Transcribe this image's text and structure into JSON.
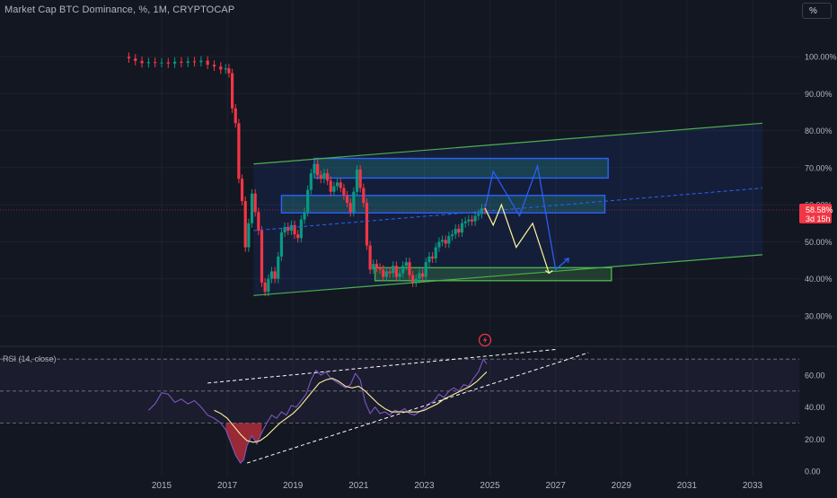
{
  "header": {
    "title": "Market Cap BTC Dominance, %, 1M, CRYPTOCAP",
    "unit_button": "%"
  },
  "price_badge": {
    "value": "58.58%",
    "countdown": "3d 15h",
    "color": "#f23645"
  },
  "rsi_panel": {
    "label": "RSI (14, close)",
    "upper_band": 70,
    "lower_band": 30,
    "mid_line": 50
  },
  "colors": {
    "background": "#131722",
    "up_candle": "#089981",
    "down_candle": "#f23645",
    "channel": "#4caf50",
    "zone_blue": "#2962ff",
    "path_blue": "#2962ff",
    "path_yellow": "#fff59d",
    "rsi_line": "#7e57c2",
    "rsi_ma": "#fff59d"
  },
  "icons": {
    "event": "lightning-icon"
  },
  "chart_data": [
    {
      "type": "candlestick",
      "title": "Market Cap BTC Dominance, %, 1M, CRYPTOCAP",
      "ylim": [
        25,
        110
      ],
      "xlim": [
        2013.0,
        2034.0
      ],
      "y_ticks": [
        "100.00%",
        "90.00%",
        "80.00%",
        "70.00%",
        "60.00%",
        "50.00%",
        "40.00%",
        "30.00%"
      ],
      "y_tick_values": [
        100,
        90,
        80,
        70,
        60,
        50,
        40,
        30
      ],
      "x_ticks": [
        "2015",
        "2017",
        "2019",
        "2021",
        "2023",
        "2025",
        "2027",
        "2029",
        "2031",
        "2033"
      ],
      "x_tick_values": [
        2015,
        2017,
        2019,
        2021,
        2023,
        2025,
        2027,
        2029,
        2031,
        2033
      ],
      "last_value": 58.58,
      "series_close": [
        [
          2014.0,
          99.5
        ],
        [
          2014.2,
          98.8
        ],
        [
          2014.4,
          98.2
        ],
        [
          2014.6,
          98.5
        ],
        [
          2014.8,
          98.3
        ],
        [
          2015.0,
          98.4
        ],
        [
          2015.2,
          98.1
        ],
        [
          2015.4,
          98.6
        ],
        [
          2015.6,
          98.3
        ],
        [
          2015.8,
          98.7
        ],
        [
          2016.0,
          98.5
        ],
        [
          2016.2,
          98.9
        ],
        [
          2016.4,
          97.8
        ],
        [
          2016.6,
          97.3
        ],
        [
          2016.8,
          96.5
        ],
        [
          2016.95,
          96.8
        ],
        [
          2017.05,
          95.5
        ],
        [
          2017.15,
          86.0
        ],
        [
          2017.25,
          82.0
        ],
        [
          2017.35,
          67.0
        ],
        [
          2017.45,
          61.0
        ],
        [
          2017.55,
          48.5
        ],
        [
          2017.65,
          55.0
        ],
        [
          2017.75,
          63.0
        ],
        [
          2017.85,
          58.0
        ],
        [
          2017.95,
          53.0
        ],
        [
          2018.05,
          39.0
        ],
        [
          2018.15,
          36.5
        ],
        [
          2018.25,
          40.0
        ],
        [
          2018.35,
          42.0
        ],
        [
          2018.45,
          40.0
        ],
        [
          2018.55,
          46.0
        ],
        [
          2018.65,
          52.5
        ],
        [
          2018.75,
          54.0
        ],
        [
          2018.85,
          53.0
        ],
        [
          2018.95,
          54.5
        ],
        [
          2019.05,
          52.0
        ],
        [
          2019.15,
          51.0
        ],
        [
          2019.25,
          56.0
        ],
        [
          2019.35,
          58.0
        ],
        [
          2019.45,
          64.0
        ],
        [
          2019.55,
          68.5
        ],
        [
          2019.65,
          71.0
        ],
        [
          2019.75,
          68.0
        ],
        [
          2019.85,
          67.0
        ],
        [
          2019.95,
          68.5
        ],
        [
          2020.05,
          66.5
        ],
        [
          2020.15,
          63.5
        ],
        [
          2020.25,
          65.0
        ],
        [
          2020.35,
          66.0
        ],
        [
          2020.45,
          64.5
        ],
        [
          2020.55,
          62.5
        ],
        [
          2020.65,
          60.5
        ],
        [
          2020.75,
          58.0
        ],
        [
          2020.85,
          63.5
        ],
        [
          2020.95,
          69.5
        ],
        [
          2021.05,
          64.5
        ],
        [
          2021.15,
          60.5
        ],
        [
          2021.25,
          49.0
        ],
        [
          2021.35,
          42.5
        ],
        [
          2021.45,
          44.0
        ],
        [
          2021.55,
          43.0
        ],
        [
          2021.65,
          42.5
        ],
        [
          2021.75,
          40.5
        ],
        [
          2021.85,
          42.0
        ],
        [
          2021.95,
          41.5
        ],
        [
          2022.05,
          43.5
        ],
        [
          2022.15,
          40.5
        ],
        [
          2022.25,
          41.5
        ],
        [
          2022.35,
          43.5
        ],
        [
          2022.45,
          44.5
        ],
        [
          2022.55,
          41.0
        ],
        [
          2022.65,
          39.0
        ],
        [
          2022.75,
          40.0
        ],
        [
          2022.85,
          41.5
        ],
        [
          2022.95,
          40.5
        ],
        [
          2023.05,
          44.5
        ],
        [
          2023.15,
          46.0
        ],
        [
          2023.25,
          45.5
        ],
        [
          2023.35,
          48.5
        ],
        [
          2023.45,
          50.0
        ],
        [
          2023.55,
          50.5
        ],
        [
          2023.65,
          49.5
        ],
        [
          2023.75,
          51.5
        ],
        [
          2023.85,
          52.0
        ],
        [
          2023.95,
          53.5
        ],
        [
          2024.05,
          52.5
        ],
        [
          2024.15,
          55.0
        ],
        [
          2024.25,
          55.5
        ],
        [
          2024.35,
          56.0
        ],
        [
          2024.45,
          55.5
        ],
        [
          2024.55,
          57.0
        ],
        [
          2024.65,
          57.5
        ],
        [
          2024.75,
          59.0
        ],
        [
          2024.85,
          58.58
        ]
      ],
      "annotations": {
        "channel_upper": [
          [
            2017.8,
            71.0
          ],
          [
            2033.3,
            82.0
          ]
        ],
        "channel_lower": [
          [
            2017.8,
            35.5
          ],
          [
            2033.3,
            46.5
          ]
        ],
        "channel_mid_dashed": [
          [
            2017.8,
            53.0
          ],
          [
            2033.3,
            64.5
          ]
        ],
        "zone_blue_upper": {
          "x": [
            2019.65,
            2028.6
          ],
          "y": [
            67.2,
            72.5
          ]
        },
        "zone_blue_lower": {
          "x": [
            2018.65,
            2028.5
          ],
          "y": [
            57.8,
            62.5
          ]
        },
        "zone_green": {
          "x": [
            2021.5,
            2028.7
          ],
          "y": [
            39.5,
            43.0
          ]
        },
        "path_blue": [
          [
            2024.85,
            59.0
          ],
          [
            2025.1,
            69.0
          ],
          [
            2025.9,
            57.0
          ],
          [
            2026.45,
            70.5
          ],
          [
            2027.0,
            42.5
          ],
          [
            2027.4,
            45.5
          ]
        ],
        "path_yellow": [
          [
            2024.85,
            59.0
          ],
          [
            2025.1,
            54.5
          ],
          [
            2025.35,
            60.0
          ],
          [
            2025.8,
            48.5
          ],
          [
            2026.3,
            55.0
          ],
          [
            2026.8,
            41.5
          ]
        ]
      }
    },
    {
      "type": "line",
      "title": "RSI (14, close)",
      "ylim": [
        -5,
        80
      ],
      "y_ticks": [
        "60.00",
        "40.00",
        "20.00",
        "0.00"
      ],
      "y_tick_values": [
        60,
        40,
        20,
        0
      ],
      "bands": [
        30,
        50,
        70
      ],
      "series": [
        {
          "name": "RSI",
          "values": [
            [
              2014.6,
              38
            ],
            [
              2014.8,
              42
            ],
            [
              2015.0,
              49
            ],
            [
              2015.2,
              48
            ],
            [
              2015.4,
              43
            ],
            [
              2015.6,
              45
            ],
            [
              2015.8,
              42
            ],
            [
              2016.0,
              44
            ],
            [
              2016.2,
              40
            ],
            [
              2016.4,
              35
            ],
            [
              2016.6,
              33
            ],
            [
              2016.8,
              30
            ],
            [
              2016.95,
              26
            ],
            [
              2017.1,
              18
            ],
            [
              2017.25,
              10
            ],
            [
              2017.4,
              5
            ],
            [
              2017.5,
              7
            ],
            [
              2017.6,
              16
            ],
            [
              2017.75,
              22
            ],
            [
              2017.9,
              17
            ],
            [
              2018.05,
              24
            ],
            [
              2018.2,
              30
            ],
            [
              2018.35,
              35
            ],
            [
              2018.5,
              33
            ],
            [
              2018.65,
              37
            ],
            [
              2018.8,
              35
            ],
            [
              2018.95,
              41
            ],
            [
              2019.1,
              40
            ],
            [
              2019.25,
              44
            ],
            [
              2019.4,
              48
            ],
            [
              2019.55,
              57
            ],
            [
              2019.7,
              63
            ],
            [
              2019.85,
              60
            ],
            [
              2020.0,
              62
            ],
            [
              2020.15,
              58
            ],
            [
              2020.3,
              56
            ],
            [
              2020.45,
              54
            ],
            [
              2020.6,
              52
            ],
            [
              2020.75,
              54
            ],
            [
              2020.9,
              61
            ],
            [
              2021.05,
              57
            ],
            [
              2021.2,
              43
            ],
            [
              2021.35,
              36
            ],
            [
              2021.5,
              40
            ],
            [
              2021.65,
              36
            ],
            [
              2021.8,
              37
            ],
            [
              2021.95,
              35
            ],
            [
              2022.1,
              38
            ],
            [
              2022.25,
              37
            ],
            [
              2022.4,
              39
            ],
            [
              2022.55,
              36
            ],
            [
              2022.7,
              35
            ],
            [
              2022.85,
              37
            ],
            [
              2023.0,
              39
            ],
            [
              2023.15,
              42
            ],
            [
              2023.3,
              44
            ],
            [
              2023.45,
              48
            ],
            [
              2023.6,
              46
            ],
            [
              2023.75,
              50
            ],
            [
              2023.9,
              52
            ],
            [
              2024.05,
              50
            ],
            [
              2024.2,
              54
            ],
            [
              2024.35,
              53
            ],
            [
              2024.5,
              58
            ],
            [
              2024.65,
              62
            ],
            [
              2024.8,
              70
            ],
            [
              2024.9,
              67
            ]
          ]
        },
        {
          "name": "RSI MA",
          "values": [
            [
              2016.6,
              38
            ],
            [
              2016.8,
              36
            ],
            [
              2017.0,
              33
            ],
            [
              2017.2,
              28
            ],
            [
              2017.4,
              23
            ],
            [
              2017.6,
              19
            ],
            [
              2017.8,
              18
            ],
            [
              2018.0,
              19
            ],
            [
              2018.2,
              22
            ],
            [
              2018.4,
              26
            ],
            [
              2018.6,
              30
            ],
            [
              2018.8,
              33
            ],
            [
              2019.0,
              36
            ],
            [
              2019.2,
              40
            ],
            [
              2019.4,
              45
            ],
            [
              2019.6,
              50
            ],
            [
              2019.8,
              55
            ],
            [
              2020.0,
              57
            ],
            [
              2020.2,
              58
            ],
            [
              2020.4,
              56
            ],
            [
              2020.6,
              53
            ],
            [
              2020.8,
              52
            ],
            [
              2021.0,
              53
            ],
            [
              2021.2,
              50
            ],
            [
              2021.4,
              46
            ],
            [
              2021.6,
              42
            ],
            [
              2021.8,
              39
            ],
            [
              2022.0,
              37
            ],
            [
              2022.2,
              37
            ],
            [
              2022.4,
              37
            ],
            [
              2022.6,
              37
            ],
            [
              2022.8,
              37
            ],
            [
              2023.0,
              38
            ],
            [
              2023.2,
              40
            ],
            [
              2023.4,
              42
            ],
            [
              2023.6,
              45
            ],
            [
              2023.8,
              47
            ],
            [
              2024.0,
              49
            ],
            [
              2024.2,
              51
            ],
            [
              2024.4,
              53
            ],
            [
              2024.6,
              56
            ],
            [
              2024.8,
              60
            ],
            [
              2024.9,
              62
            ]
          ]
        }
      ],
      "trendlines": {
        "upper_dashed": [
          [
            2016.4,
            55
          ],
          [
            2027.0,
            76
          ]
        ],
        "lower_dashed": [
          [
            2017.6,
            5
          ],
          [
            2028.0,
            74
          ]
        ]
      }
    }
  ]
}
